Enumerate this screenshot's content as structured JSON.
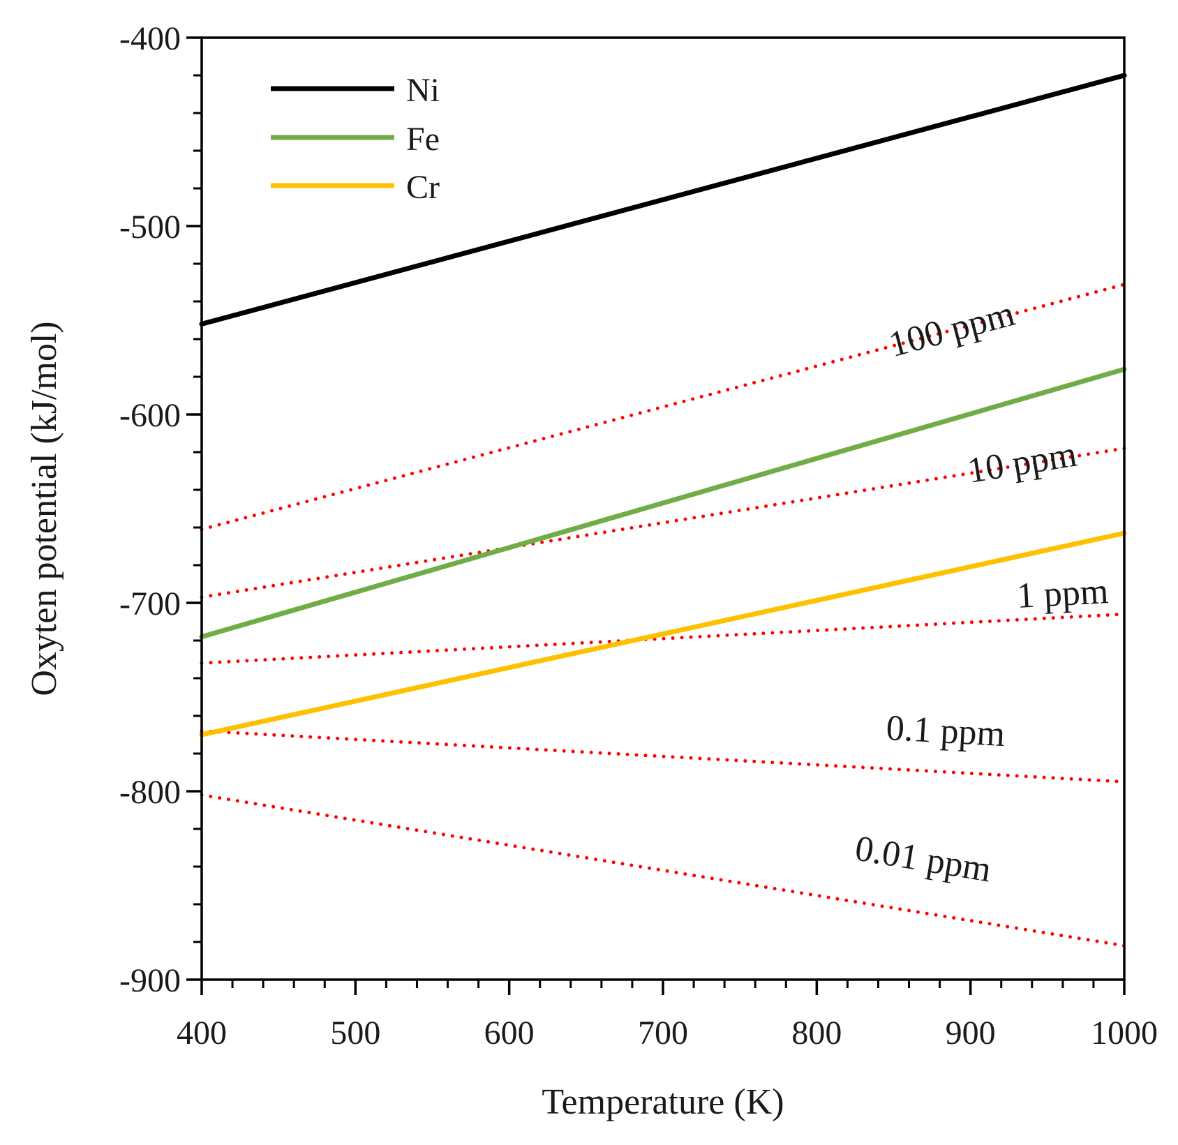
{
  "chart_data": {
    "type": "line",
    "title": "",
    "xlabel": "Temperature (K)",
    "ylabel": "Oxyten potential (kJ/mol)",
    "xlim": [
      400,
      1000
    ],
    "ylim": [
      -900,
      -400
    ],
    "xticks": [
      400,
      500,
      600,
      700,
      800,
      900,
      1000
    ],
    "yticks": [
      -400,
      -500,
      -600,
      -700,
      -800,
      -900
    ],
    "x_minor_step": 20,
    "y_minor_step": 20,
    "grid": false,
    "legend_position": "top-left",
    "series": [
      {
        "name": "Ni",
        "color": "#000000",
        "style": "solid",
        "x": [
          400,
          1000
        ],
        "y": [
          -552,
          -420
        ]
      },
      {
        "name": "Fe",
        "color": "#70ad47",
        "style": "solid",
        "x": [
          400,
          1000
        ],
        "y": [
          -718,
          -576
        ]
      },
      {
        "name": "Cr",
        "color": "#ffc000",
        "style": "solid",
        "x": [
          400,
          1000
        ],
        "y": [
          -770,
          -663
        ]
      }
    ],
    "reference_lines": [
      {
        "label": "100 ppm",
        "color": "#ff0000",
        "style": "dotted",
        "x": [
          400,
          1000
        ],
        "y": [
          -661,
          -531
        ],
        "label_at": [
          930,
          -552
        ]
      },
      {
        "label": "10 ppm",
        "color": "#ff0000",
        "style": "dotted",
        "x": [
          400,
          1000
        ],
        "y": [
          -697,
          -618
        ],
        "label_at": [
          970,
          -627
        ]
      },
      {
        "label": "1 ppm",
        "color": "#ff0000",
        "style": "dotted",
        "x": [
          400,
          1000
        ],
        "y": [
          -732,
          -706
        ],
        "label_at": [
          990,
          -700
        ]
      },
      {
        "label": "0.1 ppm",
        "color": "#ff0000",
        "style": "dotted",
        "x": [
          400,
          1000
        ],
        "y": [
          -768,
          -795
        ],
        "label_at": [
          922,
          -776
        ]
      },
      {
        "label": "0.01 ppm",
        "color": "#ff0000",
        "style": "dotted",
        "x": [
          400,
          1000
        ],
        "y": [
          -802,
          -882
        ],
        "label_at": [
          912,
          -848
        ]
      }
    ]
  }
}
